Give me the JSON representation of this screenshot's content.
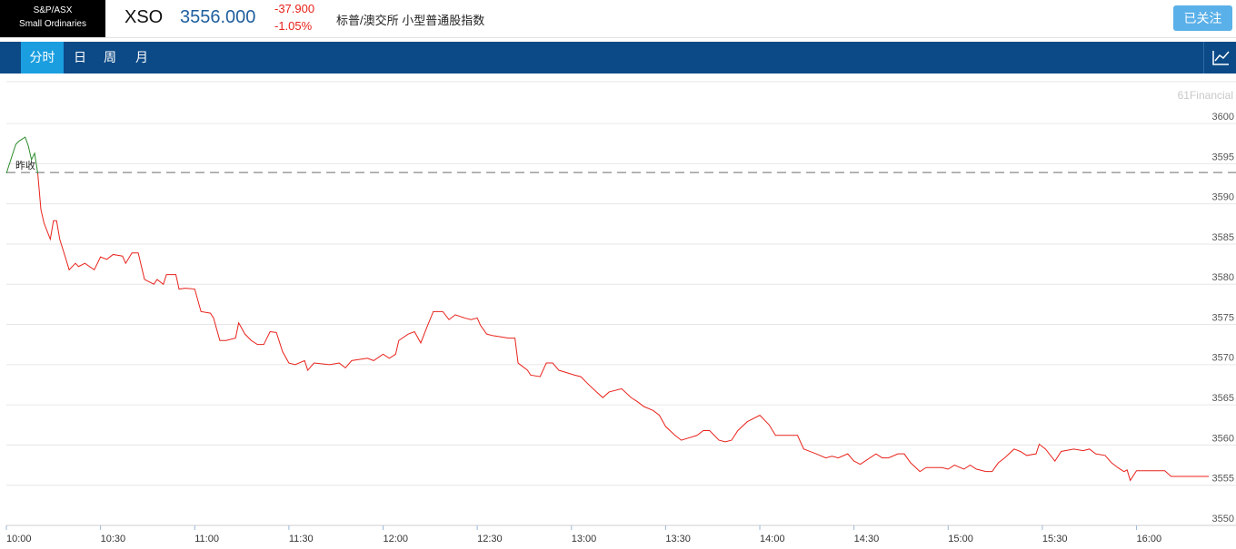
{
  "header": {
    "logo_lines": [
      "S&P/ASX",
      "Small Ordinaries"
    ],
    "symbol": "XSO",
    "price": "3556.000",
    "change": "-37.900",
    "change_pct": "-1.05%",
    "name": "标普/澳交所 小型普通股指数",
    "follow_button": "已关注"
  },
  "tabs": [
    "分时",
    "日",
    "周",
    "月"
  ],
  "chart_data": {
    "type": "line",
    "watermark": "61Financial",
    "x": [
      "10:00",
      "10:03",
      "10:04",
      "10:06",
      "10:07",
      "10:08",
      "10:09",
      "10:10",
      "10:11",
      "10:12",
      "10:14",
      "10:15",
      "10:16",
      "10:17",
      "10:19",
      "10:20",
      "10:22",
      "10:23",
      "10:25",
      "10:28",
      "10:30",
      "10:32",
      "10:34",
      "10:37",
      "10:38",
      "10:40",
      "10:42",
      "10:44",
      "10:47",
      "10:48",
      "10:50",
      "10:51",
      "10:54",
      "10:55",
      "10:57",
      "11:00",
      "11:02",
      "11:05",
      "11:06",
      "11:08",
      "11:10",
      "11:13",
      "11:14",
      "11:16",
      "11:18",
      "11:20",
      "11:22",
      "11:24",
      "11:26",
      "11:28",
      "11:30",
      "11:32",
      "11:35",
      "11:36",
      "11:38",
      "11:43",
      "11:46",
      "11:48",
      "11:50",
      "11:55",
      "11:57",
      "12:00",
      "12:02",
      "12:04",
      "12:05",
      "12:08",
      "12:10",
      "12:12",
      "12:14",
      "12:16",
      "12:19",
      "12:21",
      "12:23",
      "12:26",
      "12:28",
      "12:30",
      "12:31",
      "12:33",
      "12:35",
      "12:40",
      "12:42",
      "12:43",
      "12:46",
      "12:47",
      "12:50",
      "12:52",
      "12:54",
      "12:56",
      "13:01",
      "13:03",
      "13:05",
      "13:08",
      "13:10",
      "13:12",
      "13:16",
      "13:19",
      "13:21",
      "13:23",
      "13:26",
      "13:28",
      "13:30",
      "13:33",
      "13:35",
      "13:40",
      "13:42",
      "13:44",
      "13:47",
      "13:49",
      "13:51",
      "13:53",
      "13:56",
      "14:00",
      "14:03",
      "14:05",
      "14:10",
      "14:12",
      "14:14",
      "14:18",
      "14:21",
      "14:23",
      "14:25",
      "14:28",
      "14:30",
      "14:32",
      "14:37",
      "14:39",
      "14:41",
      "14:44",
      "14:46",
      "14:48",
      "14:51",
      "14:53",
      "14:58",
      "15:00",
      "15:02",
      "15:05",
      "15:07",
      "15:09",
      "15:12",
      "15:14",
      "15:16",
      "15:18",
      "15:21",
      "15:23",
      "15:25",
      "15:28",
      "15:29",
      "15:31",
      "15:34",
      "15:36",
      "15:40",
      "15:43",
      "15:45",
      "15:47",
      "15:50",
      "15:52",
      "15:54",
      "15:56",
      "15:57",
      "15:58",
      "16:00",
      "16:09",
      "16:11",
      "16:23"
    ],
    "series": [
      {
        "color": "#2a8a2a",
        "values": [
          3593.8,
          3597.4,
          3597.8,
          3598.3,
          3597.2,
          3595.5,
          3596.3,
          3593.8,
          null,
          null,
          null,
          null,
          null,
          null,
          null,
          null,
          null,
          null,
          null,
          null,
          null,
          null,
          null,
          null,
          null,
          null,
          null,
          null,
          null,
          null,
          null,
          null,
          null,
          null,
          null,
          null,
          null,
          null,
          null,
          null,
          null,
          null,
          null,
          null,
          null,
          null,
          null,
          null,
          null,
          null,
          null,
          null,
          null,
          null,
          null,
          null,
          null,
          null,
          null,
          null,
          null,
          null,
          null,
          null,
          null,
          null,
          null,
          null,
          null,
          null,
          null,
          null,
          null,
          null,
          null,
          null,
          null,
          null,
          null,
          null,
          null,
          null,
          null,
          null,
          null,
          null,
          null,
          null,
          null,
          null,
          null,
          null,
          null,
          null,
          null,
          null,
          null,
          null,
          null,
          null,
          null,
          null,
          null,
          null,
          null,
          null,
          null,
          null,
          null,
          null,
          null,
          null,
          null,
          null,
          null,
          null,
          null,
          null,
          null,
          null,
          null,
          null,
          null,
          null,
          null,
          null,
          null,
          null,
          null,
          null,
          null,
          null,
          null,
          null,
          null,
          null,
          null,
          null,
          null,
          null,
          null,
          null,
          null,
          null,
          null,
          null,
          null,
          null,
          null,
          null,
          null,
          null,
          null,
          null,
          null,
          null,
          null,
          null,
          null,
          null,
          null,
          null,
          null,
          null
        ]
      },
      {
        "color": "#e8221b",
        "values": [
          null,
          null,
          null,
          null,
          null,
          null,
          null,
          3593.8,
          3589.3,
          3587.6,
          3585.6,
          3587.9,
          3587.9,
          3585.6,
          3583.1,
          3581.8,
          3582.6,
          3582.2,
          3582.6,
          3581.8,
          3583.4,
          3583.1,
          3583.7,
          3583.5,
          3582.6,
          3583.9,
          3583.9,
          3580.6,
          3580.0,
          3580.6,
          3580.0,
          3581.2,
          3581.2,
          3579.4,
          3579.5,
          3579.4,
          3576.6,
          3576.4,
          3575.8,
          3573.0,
          3573.0,
          3573.3,
          3575.2,
          3573.8,
          3573.0,
          3572.5,
          3572.5,
          3574.1,
          3574.0,
          3571.6,
          3570.2,
          3570.0,
          3570.5,
          3569.3,
          3570.2,
          3570.0,
          3570.2,
          3569.6,
          3570.5,
          3570.8,
          3570.5,
          3571.3,
          3570.8,
          3571.3,
          3573.0,
          3573.8,
          3574.1,
          3572.7,
          3574.7,
          3576.6,
          3576.6,
          3575.6,
          3576.2,
          3575.8,
          3575.6,
          3575.8,
          3574.9,
          3573.8,
          3573.6,
          3573.3,
          3573.3,
          3570.2,
          3569.3,
          3568.7,
          3568.5,
          3570.2,
          3570.2,
          3569.3,
          3568.7,
          3568.5,
          3567.7,
          3566.6,
          3565.9,
          3566.6,
          3567.0,
          3565.9,
          3565.4,
          3564.8,
          3564.3,
          3563.7,
          3562.3,
          3561.2,
          3560.6,
          3561.2,
          3561.8,
          3561.8,
          3560.6,
          3560.4,
          3560.6,
          3561.8,
          3562.9,
          3563.7,
          3562.5,
          3561.2,
          3561.2,
          3561.2,
          3559.5,
          3558.9,
          3558.4,
          3558.6,
          3558.4,
          3558.9,
          3558.0,
          3557.6,
          3558.9,
          3558.4,
          3558.4,
          3558.9,
          3558.9,
          3557.8,
          3556.7,
          3557.2,
          3557.2,
          3557.0,
          3557.5,
          3557.0,
          3557.5,
          3557.0,
          3556.7,
          3556.7,
          3557.8,
          3558.4,
          3559.5,
          3559.2,
          3558.7,
          3558.9,
          3560.1,
          3559.5,
          3558.0,
          3559.2,
          3559.5,
          3559.3,
          3559.5,
          3558.9,
          3558.7,
          3557.8,
          3557.2,
          3556.7,
          3556.9,
          3555.6,
          3556.8,
          3556.8,
          3556.1,
          3556.1
        ]
      }
    ],
    "prev_close": 3593.9,
    "prev_close_label": "昨收",
    "xlim": [
      "10:00",
      "16:23"
    ],
    "xticks": [
      "10:00",
      "10:30",
      "11:00",
      "11:30",
      "12:00",
      "12:30",
      "13:00",
      "13:30",
      "14:00",
      "14:30",
      "15:00",
      "15:30",
      "16:00"
    ],
    "ylim": [
      3550,
      3605.2
    ],
    "yticks": [
      3550,
      3555,
      3560,
      3565,
      3570,
      3575,
      3580,
      3585,
      3590,
      3595,
      3600
    ],
    "grid": true
  }
}
